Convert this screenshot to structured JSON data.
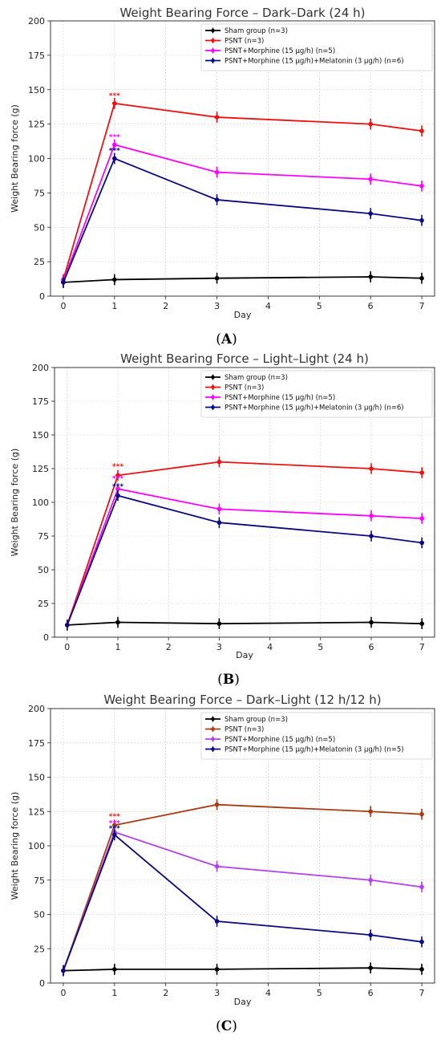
{
  "chart_data": [
    {
      "type": "line",
      "title": "Weight Bearing Force – Dark–Dark (24 h)",
      "xlabel": "Day",
      "ylabel": "Weight Bearing force (g)",
      "x_ticks": [
        0,
        1,
        2,
        3,
        4,
        5,
        6,
        7
      ],
      "y_ticks": [
        0,
        25,
        50,
        75,
        100,
        125,
        150,
        175,
        200
      ],
      "xlim": [
        -0.25,
        7.25
      ],
      "ylim": [
        0,
        200
      ],
      "grid": true,
      "legend_position": "top-right",
      "panel_label": "A",
      "x": [
        0,
        1,
        3,
        6,
        7
      ],
      "series": [
        {
          "name": "Sham group (n=3)",
          "color": "#000000",
          "values": [
            10,
            12,
            13,
            14,
            13
          ],
          "errors": [
            4,
            4,
            4,
            4,
            4
          ]
        },
        {
          "name": "PSNT (n=3)",
          "color": "#ee1111",
          "values": [
            12,
            140,
            130,
            125,
            120
          ],
          "errors": [
            4,
            4,
            4,
            4,
            4
          ]
        },
        {
          "name": "PSNT+Morphine (15 μg/h) (n=5)",
          "color": "#ff00ff",
          "values": [
            11,
            110,
            90,
            85,
            80
          ],
          "errors": [
            4,
            4,
            4,
            4,
            4
          ]
        },
        {
          "name": "PSNT+Morphine (15 μg/h)+Melatonin (3 μg/h) (n=6)",
          "color": "#0a0a80",
          "values": [
            10,
            100,
            70,
            60,
            55
          ],
          "errors": [
            4,
            4,
            4,
            4,
            4
          ]
        }
      ],
      "annotations": [
        {
          "text": "***",
          "x": 1,
          "y": 144,
          "color": "#ee1111"
        },
        {
          "text": "***",
          "x": 1,
          "y": 114,
          "color": "#ff00ff"
        },
        {
          "text": "***",
          "x": 1,
          "y": 104,
          "color": "#0a0a80"
        }
      ]
    },
    {
      "type": "line",
      "title": "Weight Bearing Force – Light–Light (24 h)",
      "xlabel": "Day",
      "ylabel": "Weight Bearing force (g)",
      "x_ticks": [
        0,
        1,
        2,
        3,
        4,
        5,
        6,
        7
      ],
      "y_ticks": [
        0,
        25,
        50,
        75,
        100,
        125,
        150,
        175,
        200
      ],
      "xlim": [
        -0.25,
        7.25
      ],
      "ylim": [
        0,
        200
      ],
      "grid": true,
      "legend_position": "top-right",
      "panel_label": "B",
      "x": [
        0,
        1,
        3,
        6,
        7
      ],
      "series": [
        {
          "name": "Sham group (n=3)",
          "color": "#000000",
          "values": [
            9,
            11,
            10,
            11,
            10
          ],
          "errors": [
            4,
            4,
            4,
            4,
            4
          ]
        },
        {
          "name": "PSNT (n=3)",
          "color": "#ee1111",
          "values": [
            9,
            120,
            130,
            125,
            122
          ],
          "errors": [
            4,
            4,
            4,
            4,
            4
          ]
        },
        {
          "name": "PSNT+Morphine (15 μg/h) (n=5)",
          "color": "#ff00ff",
          "values": [
            9,
            110,
            95,
            90,
            88
          ],
          "errors": [
            4,
            4,
            4,
            4,
            4
          ]
        },
        {
          "name": "PSNT+Morphine (15 μg/h)+Melatonin (3 μg/h) (n=6)",
          "color": "#0a0a80",
          "values": [
            9,
            105,
            85,
            75,
            70
          ],
          "errors": [
            4,
            4,
            4,
            4,
            4
          ]
        }
      ],
      "annotations": [
        {
          "text": "***",
          "x": 1,
          "y": 125,
          "color": "#ee1111"
        },
        {
          "text": "***",
          "x": 1,
          "y": 116,
          "color": "#ff00ff"
        },
        {
          "text": "***",
          "x": 1,
          "y": 110,
          "color": "#0a0a80"
        }
      ]
    },
    {
      "type": "line",
      "title": "Weight Bearing Force – Dark–Light (12 h/12 h)",
      "xlabel": "Day",
      "ylabel": "Weight Bearing force (g)",
      "x_ticks": [
        0,
        1,
        2,
        3,
        4,
        5,
        6,
        7
      ],
      "y_ticks": [
        0,
        25,
        50,
        75,
        100,
        125,
        150,
        175,
        200
      ],
      "xlim": [
        -0.25,
        7.25
      ],
      "ylim": [
        0,
        200
      ],
      "grid": true,
      "legend_position": "top-right",
      "panel_label": "C",
      "x": [
        0,
        1,
        3,
        6,
        7
      ],
      "series": [
        {
          "name": "Sham group (n=3)",
          "color": "#000000",
          "values": [
            9,
            10,
            10,
            11,
            10
          ],
          "errors": [
            4,
            4,
            4,
            4,
            4
          ]
        },
        {
          "name": "PSNT (n=3)",
          "color": "#a83a14",
          "values": [
            9,
            115,
            130,
            125,
            123
          ],
          "errors": [
            4,
            4,
            4,
            4,
            4
          ]
        },
        {
          "name": "PSNT+Morphine (15 μg/h) (n=5)",
          "color": "#b040f0",
          "values": [
            9,
            110,
            85,
            75,
            70
          ],
          "errors": [
            4,
            4,
            4,
            4,
            4
          ]
        },
        {
          "name": "PSNT+Morphine (15 μg/h)+Melatonin (3 μg/h) (n=5)",
          "color": "#0a0a80",
          "values": [
            9,
            108,
            45,
            35,
            30
          ],
          "errors": [
            4,
            4,
            4,
            4,
            4
          ]
        }
      ],
      "annotations": [
        {
          "text": "***",
          "x": 1,
          "y": 120,
          "color": "#ee1111"
        },
        {
          "text": "***",
          "x": 1,
          "y": 115,
          "color": "#ff00ff"
        },
        {
          "text": "***",
          "x": 1,
          "y": 111,
          "color": "#0a0a80"
        }
      ]
    }
  ]
}
